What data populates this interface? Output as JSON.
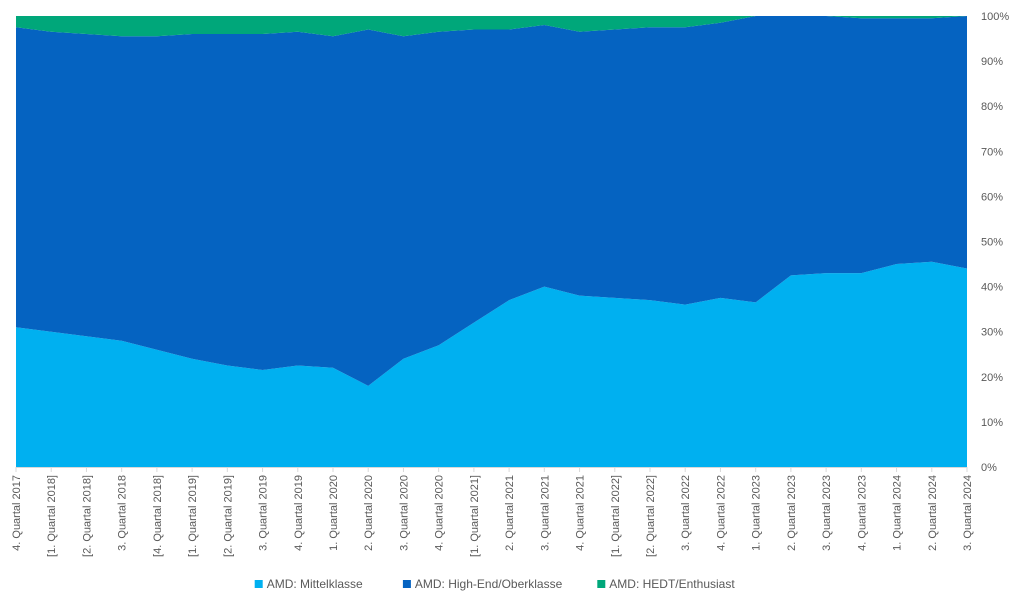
{
  "chart_data": {
    "type": "area",
    "stacked": true,
    "percent": true,
    "title": "",
    "xlabel": "",
    "ylabel": "",
    "ylim": [
      0,
      100
    ],
    "y_ticks": [
      "0%",
      "10%",
      "20%",
      "30%",
      "40%",
      "50%",
      "60%",
      "70%",
      "80%",
      "90%",
      "100%"
    ],
    "y_axis_side": "right",
    "grid": false,
    "legend": "bottom",
    "categories": [
      "4. Quartal 2017",
      "[1. Quartal 2018]",
      "[2. Quartal 2018]",
      "3. Quartal 2018",
      "[4. Quartal 2018]",
      "[1. Quartal 2019]",
      "[2. Quartal 2019]",
      "3. Quartal 2019",
      "4. Quartal 2019",
      "1. Quartal 2020",
      "2. Quartal 2020",
      "3. Quartal 2020",
      "4. Quartal 2020",
      "[1. Quartal 2021]",
      "2. Quartal 2021",
      "3. Quartal 2021",
      "4. Quartal 2021",
      "[1. Quartal 2022]",
      "[2. Quartal 2022]",
      "3. Quartal 2022",
      "4. Quartal 2022",
      "1. Quartal 2023",
      "2. Quartal 2023",
      "3. Quartal 2023",
      "4. Quartal 2023",
      "1. Quartal 2024",
      "2. Quartal 2024",
      "3. Quartal 2024"
    ],
    "series": [
      {
        "name": "AMD: Mittelklasse",
        "color": "#00b0f0",
        "values": [
          31,
          30,
          29,
          28,
          26,
          24,
          22.5,
          21.5,
          22.5,
          22,
          18,
          24,
          27,
          32,
          37,
          40,
          38,
          37.5,
          37,
          36,
          37.5,
          36.5,
          42.5,
          43,
          43,
          45,
          45.5,
          44
        ]
      },
      {
        "name": "AMD: High-End/Oberklasse",
        "color": "#0563c1",
        "values": [
          66.5,
          66.5,
          67,
          67.5,
          69.5,
          72,
          73.5,
          74.5,
          74,
          73.5,
          79,
          71.5,
          69.5,
          65,
          60,
          58,
          58.5,
          59.5,
          60.5,
          61.5,
          61,
          63.5,
          57.5,
          57,
          56.5,
          54.5,
          54,
          56
        ]
      },
      {
        "name": "AMD: HEDT/Enthusiast",
        "color": "#00a77a",
        "values": [
          2.5,
          3.5,
          4,
          4.5,
          4.5,
          4,
          4,
          4,
          3.5,
          4.5,
          3,
          4.5,
          3.5,
          3,
          3,
          2,
          3.5,
          3,
          2.5,
          2.5,
          1.5,
          0,
          0,
          0,
          0.5,
          0.5,
          0.5,
          0
        ]
      }
    ]
  }
}
